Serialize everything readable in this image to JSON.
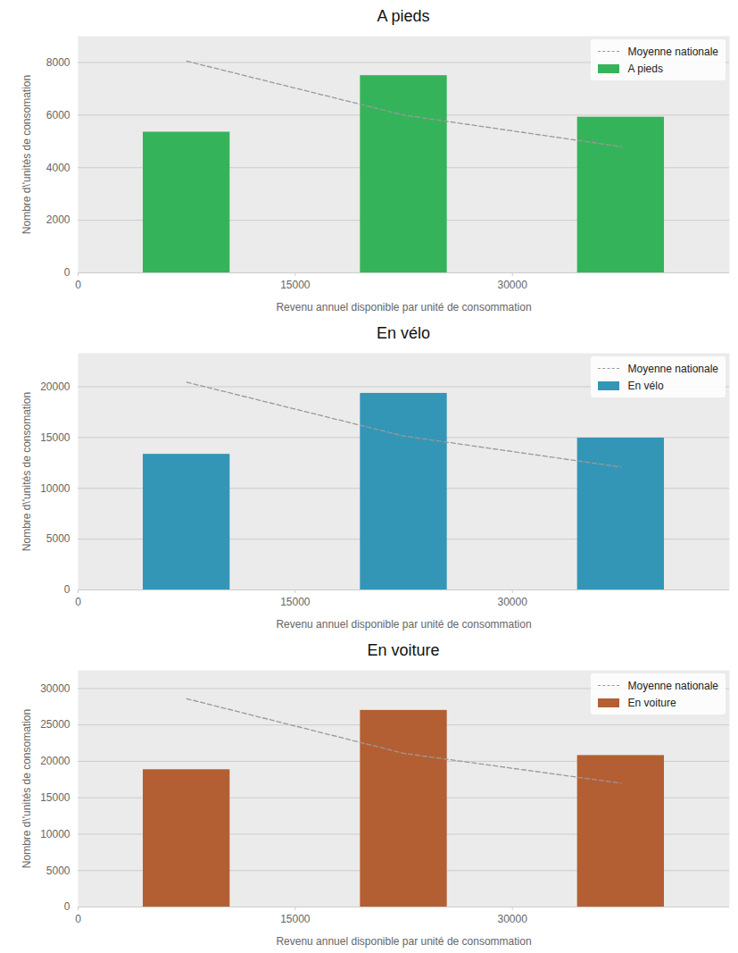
{
  "chart_data": [
    {
      "type": "bar",
      "title": "A pieds",
      "x_label": "Revenu annuel disponible par unité de consommation",
      "y_label": "Nombre d\\'unités de consomation",
      "x": [
        7500,
        22500,
        37500
      ],
      "series": [
        {
          "name": "Moyenne nationale",
          "type": "line",
          "line_style": "dashed",
          "color": "#999999",
          "values": [
            8050,
            6000,
            4800
          ]
        },
        {
          "name": "A pieds",
          "type": "bar",
          "color": "#35b35a",
          "values": [
            5350,
            7500,
            5920
          ]
        }
      ],
      "xlim": [
        0,
        45000
      ],
      "xticks": [
        0,
        15000,
        30000
      ],
      "ylim": [
        0,
        9000
      ],
      "yticks": [
        0,
        2000,
        4000,
        6000,
        8000
      ],
      "grid": true,
      "legend": "top-right"
    },
    {
      "type": "bar",
      "title": "En vélo",
      "x_label": "Revenu annuel disponible par unité de consommation",
      "y_label": "Nombre d\\'unités de consomation",
      "x": [
        7500,
        22500,
        37500
      ],
      "series": [
        {
          "name": "Moyenne nationale",
          "type": "line",
          "line_style": "dashed",
          "color": "#999999",
          "values": [
            20450,
            15150,
            12100
          ]
        },
        {
          "name": "En vélo",
          "type": "bar",
          "color": "#3396b6",
          "values": [
            13350,
            19350,
            14950
          ]
        }
      ],
      "xlim": [
        0,
        45000
      ],
      "xticks": [
        0,
        15000,
        30000
      ],
      "ylim": [
        0,
        23300
      ],
      "yticks": [
        0,
        5000,
        10000,
        15000,
        20000
      ],
      "grid": true,
      "legend": "top-right"
    },
    {
      "type": "bar",
      "title": "En voiture",
      "x_label": "Revenu annuel disponible par unité de consommation",
      "y_label": "Nombre d\\'unités de consomation",
      "x": [
        7500,
        22500,
        37500
      ],
      "series": [
        {
          "name": "Moyenne nationale",
          "type": "line",
          "line_style": "dashed",
          "color": "#999999",
          "values": [
            28600,
            21100,
            17000
          ]
        },
        {
          "name": "En voiture",
          "type": "bar",
          "color": "#b35f33",
          "values": [
            18850,
            27000,
            20800
          ]
        }
      ],
      "xlim": [
        0,
        45000
      ],
      "xticks": [
        0,
        15000,
        30000
      ],
      "ylim": [
        0,
        32500
      ],
      "yticks": [
        0,
        5000,
        10000,
        15000,
        20000,
        25000,
        30000
      ],
      "grid": true,
      "legend": "top-right"
    }
  ]
}
